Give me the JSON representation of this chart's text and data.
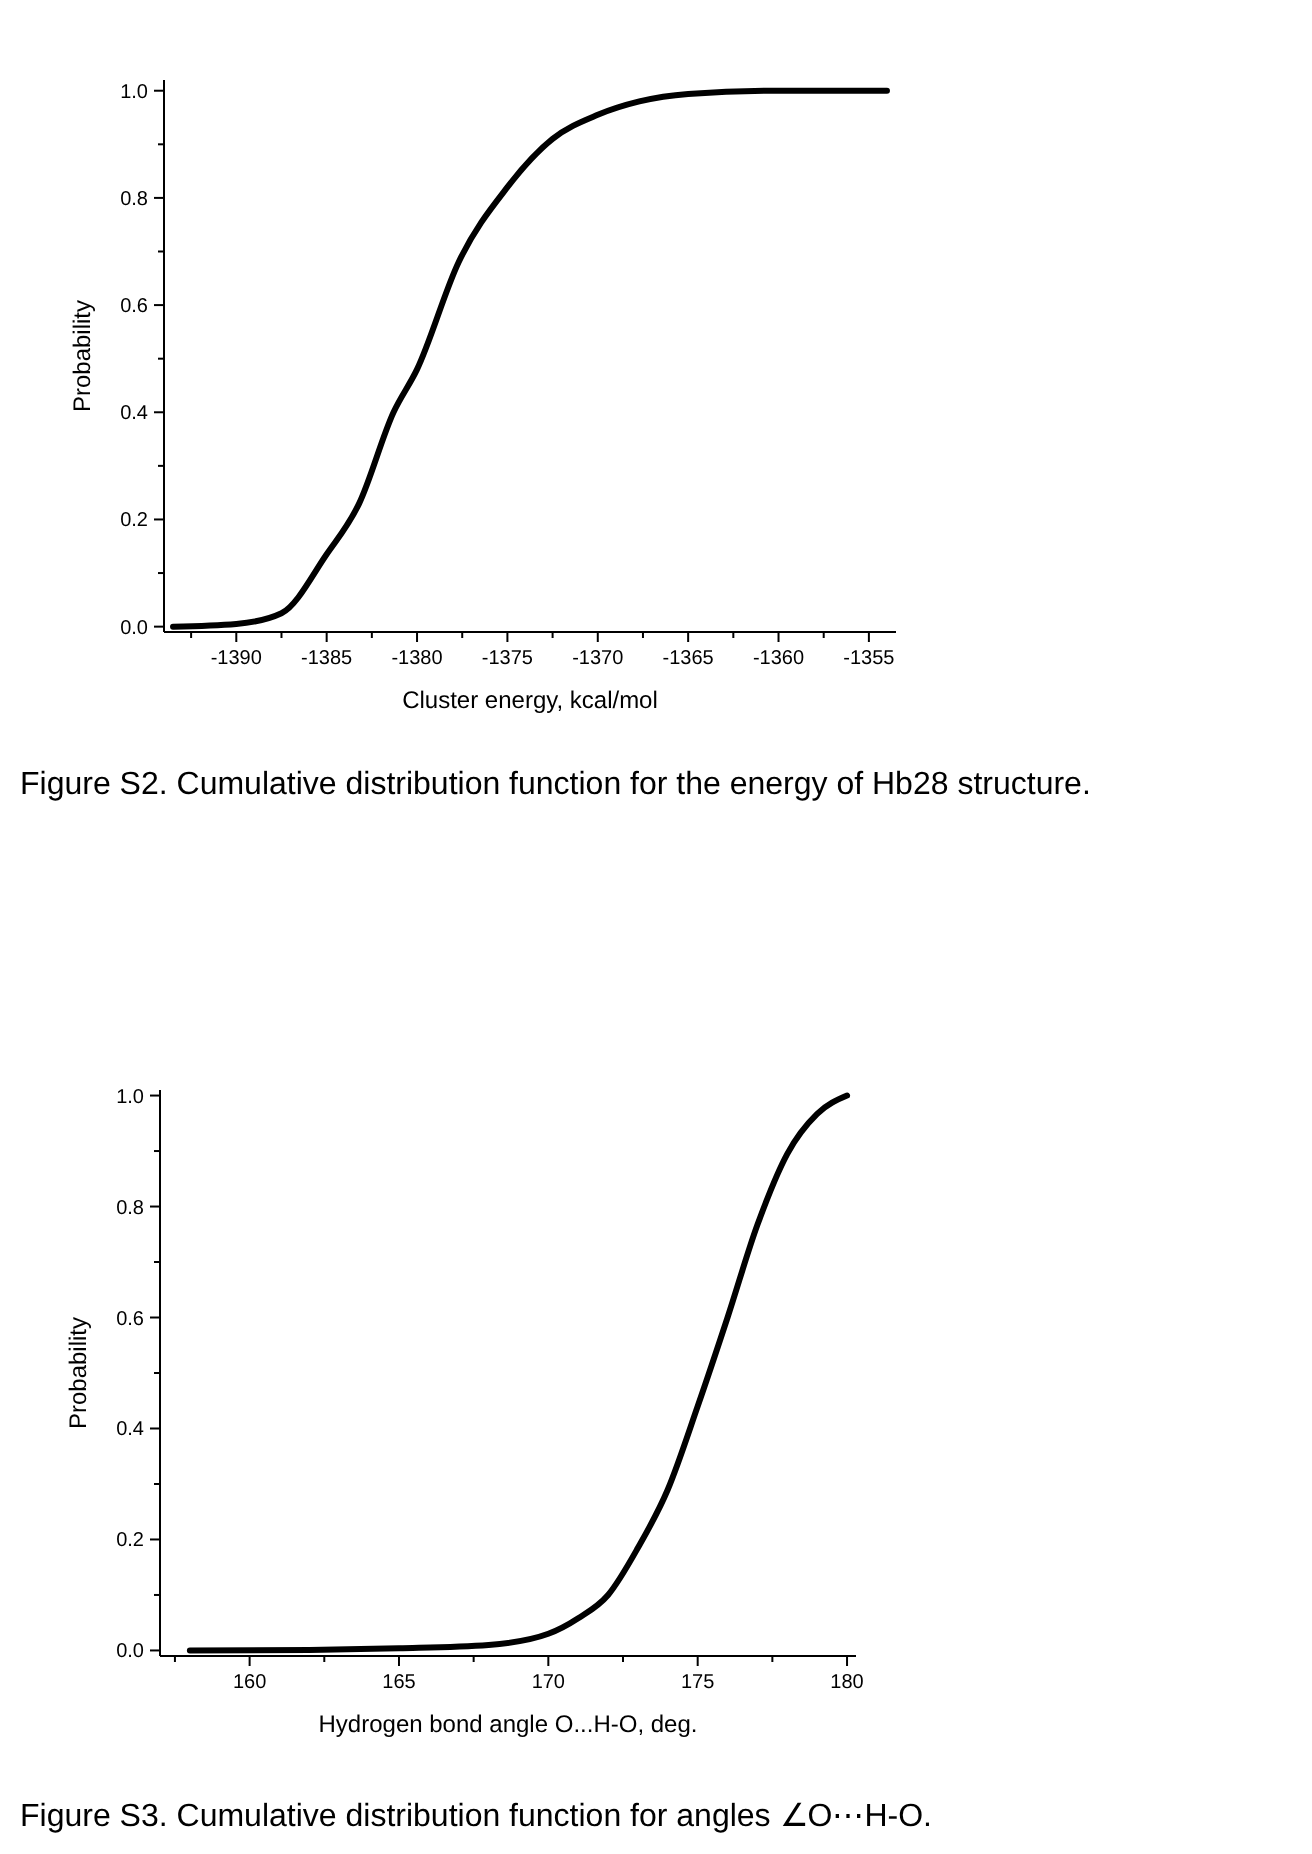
{
  "chart_data": [
    {
      "type": "line",
      "title": "Figure S2. Cumulative distribution function for the energy of Hb28 structure.",
      "xlabel": "Cluster energy, kcal/mol",
      "ylabel": "Probability",
      "xlim": [
        -1394,
        -1353.5
      ],
      "ylim": [
        -0.01,
        1.02
      ],
      "xticks": [
        {
          "value": -1392.5,
          "label": null
        },
        -1390,
        {
          "value": -1387.5,
          "label": null
        },
        -1385,
        {
          "value": -1382.5,
          "label": null
        },
        -1380,
        {
          "value": -1377.5,
          "label": null
        },
        -1375,
        {
          "value": -1372.5,
          "label": null
        },
        -1370,
        {
          "value": -1367.5,
          "label": null
        },
        -1365,
        {
          "value": -1362.5,
          "label": null
        },
        -1360,
        {
          "value": -1357.5,
          "label": null
        },
        -1355
      ],
      "yticks": [
        {
          "value": 0,
          "label": "0.0"
        },
        {
          "value": 0.1,
          "label": null
        },
        0.2,
        {
          "value": 0.3,
          "label": null
        },
        0.4,
        {
          "value": 0.5,
          "label": null
        },
        0.6,
        {
          "value": 0.7,
          "label": null
        },
        0.8,
        {
          "value": 0.9,
          "label": null
        },
        {
          "value": 1,
          "label": "1.0"
        }
      ],
      "grid": false,
      "series": [
        {
          "color": "#000000",
          "x": [
            -1393.5,
            -1390,
            -1387.5,
            -1385,
            -1383.2,
            -1381.3,
            -1380,
            -1377.7,
            -1375,
            -1372.5,
            -1370,
            -1367.7,
            -1365,
            -1360,
            -1354
          ],
          "values": [
            0,
            0.005,
            0.025,
            0.135,
            0.23,
            0.4,
            0.48,
            0.68,
            0.82,
            0.91,
            0.955,
            0.98,
            0.994,
            1,
            1
          ]
        }
      ]
    },
    {
      "type": "line",
      "title": "Figure S3. Cumulative distribution function for angles ∠O⋯H-O.",
      "xlabel": "Hydrogen bond angle O...H-O, deg.",
      "ylabel": "Probability",
      "xlim": [
        157,
        180.3
      ],
      "ylim": [
        -0.01,
        1.01
      ],
      "xticks": [
        {
          "value": 157.5,
          "label": null
        },
        160,
        {
          "value": 162.5,
          "label": null
        },
        165,
        {
          "value": 167.5,
          "label": null
        },
        170,
        {
          "value": 172.5,
          "label": null
        },
        175,
        {
          "value": 177.5,
          "label": null
        },
        180
      ],
      "yticks": [
        {
          "value": 0,
          "label": "0.0"
        },
        {
          "value": 0.1,
          "label": null
        },
        0.2,
        {
          "value": 0.3,
          "label": null
        },
        0.4,
        {
          "value": 0.5,
          "label": null
        },
        0.6,
        {
          "value": 0.7,
          "label": null
        },
        0.8,
        {
          "value": 0.9,
          "label": null
        },
        {
          "value": 1,
          "label": "1.0"
        }
      ],
      "grid": false,
      "series": [
        {
          "color": "#000000",
          "x": [
            158,
            162,
            165,
            168,
            170,
            171,
            172,
            173,
            174,
            175,
            176,
            177,
            178,
            179,
            180
          ],
          "values": [
            0,
            0.001,
            0.004,
            0.01,
            0.03,
            0.058,
            0.1,
            0.185,
            0.29,
            0.44,
            0.6,
            0.767,
            0.895,
            0.967,
            1
          ]
        }
      ]
    }
  ]
}
